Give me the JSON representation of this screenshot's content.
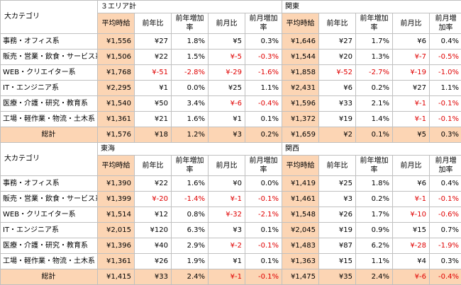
{
  "tables": [
    {
      "corner_label": "大カテゴリ",
      "areas": [
        "３エリア計",
        "関東"
      ],
      "columns": [
        "平均時給",
        "前年比",
        "前年増加率",
        "前月比",
        "前月増加率"
      ],
      "rows": [
        {
          "category": "事務・オフィス系",
          "a": [
            "¥1,556",
            "¥27",
            "1.8%",
            "¥5",
            "0.3%"
          ],
          "b": [
            "¥1,646",
            "¥27",
            "1.7%",
            "¥6",
            "0.4%"
          ]
        },
        {
          "category": "販売・営業・飲食・サービス系",
          "a": [
            "¥1,506",
            "¥22",
            "1.5%",
            "¥-5",
            "-0.3%"
          ],
          "b": [
            "¥1,544",
            "¥20",
            "1.3%",
            "¥-7",
            "-0.5%"
          ]
        },
        {
          "category": "WEB・クリエイター系",
          "a": [
            "¥1,768",
            "¥-51",
            "-2.8%",
            "¥-29",
            "-1.6%"
          ],
          "b": [
            "¥1,858",
            "¥-52",
            "-2.7%",
            "¥-19",
            "-1.0%"
          ]
        },
        {
          "category": "IT・エンジニア系",
          "a": [
            "¥2,295",
            "¥1",
            "0.0%",
            "¥25",
            "1.1%"
          ],
          "b": [
            "¥2,431",
            "¥6",
            "0.2%",
            "¥27",
            "1.1%"
          ]
        },
        {
          "category": "医療・介護・研究・教育系",
          "a": [
            "¥1,540",
            "¥50",
            "3.4%",
            "¥-6",
            "-0.4%"
          ],
          "b": [
            "¥1,596",
            "¥33",
            "2.1%",
            "¥-1",
            "-0.1%"
          ]
        },
        {
          "category": "工場・軽作業・物流・土木系",
          "a": [
            "¥1,361",
            "¥21",
            "1.6%",
            "¥1",
            "0.1%"
          ],
          "b": [
            "¥1,372",
            "¥19",
            "1.4%",
            "¥-1",
            "-0.1%"
          ]
        }
      ],
      "total": {
        "category": "総計",
        "a": [
          "¥1,576",
          "¥18",
          "1.2%",
          "¥3",
          "0.2%"
        ],
        "b": [
          "¥1,659",
          "¥2",
          "0.1%",
          "¥5",
          "0.3%"
        ]
      }
    },
    {
      "corner_label": "大カテゴリ",
      "areas": [
        "東海",
        "関西"
      ],
      "columns": [
        "平均時給",
        "前年比",
        "前年増加率",
        "前月比",
        "前月増加率"
      ],
      "rows": [
        {
          "category": "事務・オフィス系",
          "a": [
            "¥1,390",
            "¥22",
            "1.6%",
            "¥0",
            "0.0%"
          ],
          "b": [
            "¥1,419",
            "¥25",
            "1.8%",
            "¥6",
            "0.4%"
          ]
        },
        {
          "category": "販売・営業・飲食・サービス系",
          "a": [
            "¥1,399",
            "¥-20",
            "-1.4%",
            "¥-1",
            "-0.1%"
          ],
          "b": [
            "¥1,461",
            "¥3",
            "0.2%",
            "¥-1",
            "-0.1%"
          ]
        },
        {
          "category": "WEB・クリエイター系",
          "a": [
            "¥1,514",
            "¥12",
            "0.8%",
            "¥-32",
            "-2.1%"
          ],
          "b": [
            "¥1,548",
            "¥26",
            "1.7%",
            "¥-10",
            "-0.6%"
          ]
        },
        {
          "category": "IT・エンジニア系",
          "a": [
            "¥2,015",
            "¥120",
            "6.3%",
            "¥3",
            "0.1%"
          ],
          "b": [
            "¥2,045",
            "¥19",
            "0.9%",
            "¥15",
            "0.7%"
          ]
        },
        {
          "category": "医療・介護・研究・教育系",
          "a": [
            "¥1,396",
            "¥40",
            "2.9%",
            "¥-2",
            "-0.1%"
          ],
          "b": [
            "¥1,483",
            "¥87",
            "6.2%",
            "¥-28",
            "-1.9%"
          ]
        },
        {
          "category": "工場・軽作業・物流・土木系",
          "a": [
            "¥1,361",
            "¥26",
            "1.9%",
            "¥1",
            "0.1%"
          ],
          "b": [
            "¥1,363",
            "¥15",
            "1.1%",
            "¥4",
            "0.3%"
          ]
        }
      ],
      "total": {
        "category": "総計",
        "a": [
          "¥1,415",
          "¥33",
          "2.4%",
          "¥-1",
          "-0.1%"
        ],
        "b": [
          "¥1,475",
          "¥35",
          "2.4%",
          "¥-6",
          "-0.4%"
        ]
      }
    }
  ],
  "colors": {
    "highlight": "#fcd5b4",
    "negative": "#e00000",
    "border": "#c0c0c0"
  }
}
